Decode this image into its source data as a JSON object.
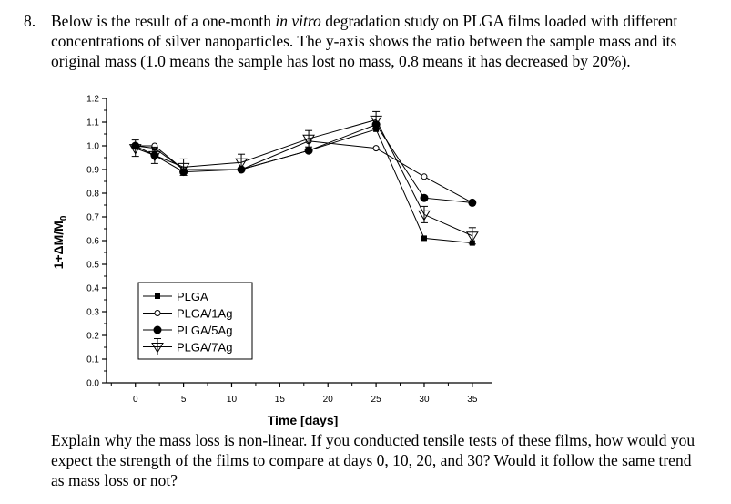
{
  "question": {
    "number": "8.",
    "top_text_before": "Below is the result of a one-month ",
    "top_text_italic": "in vitro",
    "top_text_after": " degradation study on PLGA films loaded with different concentrations of silver nanoparticles. The y-axis shows the ratio between the sample mass and its original mass (1.0 means the sample has lost no mass, 0.8 means it has decreased by 20%).",
    "bottom_text": "Explain why the mass loss is non-linear. If you conducted tensile tests of these films, how would you expect the strength of the films to compare at days 0, 10, 20, and 30? Would it follow the same trend as mass loss or not?"
  },
  "chart_data": {
    "type": "line",
    "title": "",
    "xlabel": "Time [days]",
    "ylabel": "1+ΔM/M",
    "ylabel_main": "1+ΔM/M",
    "ylabel_sub": "0",
    "xlim": [
      -3,
      37
    ],
    "ylim": [
      0.0,
      1.2
    ],
    "x_ticks": [
      "0",
      "5",
      "10",
      "15",
      "20",
      "25",
      "30",
      "35"
    ],
    "y_ticks": [
      "0.0",
      "0.1",
      "0.2",
      "0.3",
      "0.4",
      "0.5",
      "0.6",
      "0.7",
      "0.8",
      "0.9",
      "1.0",
      "1.1",
      "1.2"
    ],
    "legend_position": "bottom-left",
    "series": [
      {
        "name": "PLGA",
        "marker": "square",
        "x": [
          0,
          2,
          5,
          11,
          18,
          25,
          30,
          35
        ],
        "y": [
          1.0,
          0.99,
          0.9,
          0.9,
          0.98,
          1.07,
          0.61,
          0.59
        ]
      },
      {
        "name": "PLGA/1Ag",
        "marker": "open-circle",
        "x": [
          0,
          2,
          5,
          11,
          18,
          25,
          30,
          35
        ],
        "y": [
          1.0,
          1.0,
          0.9,
          0.9,
          1.02,
          0.99,
          0.87,
          0.76
        ]
      },
      {
        "name": "PLGA/5Ag",
        "marker": "filled-circle",
        "x": [
          0,
          2,
          5,
          11,
          18,
          25,
          30,
          35
        ],
        "y": [
          1.0,
          0.96,
          0.89,
          0.9,
          0.98,
          1.09,
          0.78,
          0.76
        ]
      },
      {
        "name": "PLGA/7Ag",
        "marker": "triangle-cross",
        "x": [
          0,
          2,
          5,
          11,
          18,
          25,
          30,
          35
        ],
        "y": [
          0.99,
          0.96,
          0.91,
          0.93,
          1.03,
          1.11,
          0.71,
          0.62
        ]
      }
    ]
  }
}
